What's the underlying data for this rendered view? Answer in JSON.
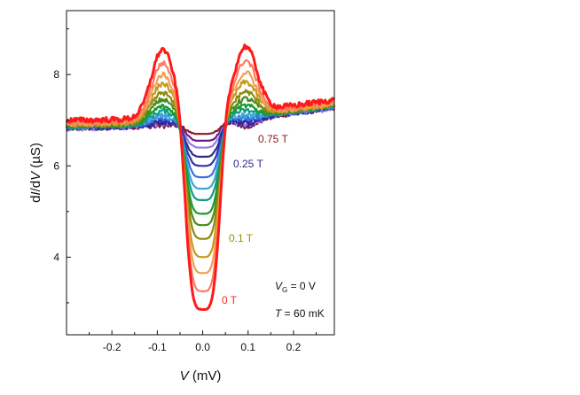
{
  "chart_data": {
    "type": "line",
    "xlabel": {
      "var": "V",
      "unit": " (mV)"
    },
    "ylabel": {
      "prefix": "d",
      "var1": "I",
      "mid": "/d",
      "var2": "V",
      "unit": " (µS)"
    },
    "xlim": [
      -0.3,
      0.29
    ],
    "ylim": [
      2.3,
      9.4
    ],
    "xticks": [
      -0.2,
      -0.1,
      0.0,
      0.1,
      0.2
    ],
    "xtick_labels": [
      "-0.2",
      "-0.1",
      "0.0",
      "0.1",
      "0.2"
    ],
    "yticks": [
      4,
      6,
      8
    ],
    "ytick_labels": [
      "4",
      "6",
      "8"
    ],
    "grid": false,
    "legend": "none",
    "annotations": {
      "field_labels": [
        {
          "text": "0.75 T",
          "color": "#8b1a1a"
        },
        {
          "text": "0.25 T",
          "color": "#2a2a8c"
        },
        {
          "text": "0.1 T",
          "color": "#a08c00"
        },
        {
          "text": "0 T",
          "color": "#ff2a1a"
        }
      ],
      "gate": {
        "var": "V",
        "sub": "G",
        "value": " = 0 V"
      },
      "temperature": {
        "var": "T",
        "value": " = 60 mK"
      }
    },
    "series": [
      {
        "color": "#ff1a1a",
        "min": 2.85,
        "peak": 8.55,
        "edge": 7.05
      },
      {
        "color": "#ff7a60",
        "min": 3.25,
        "peak": 8.25,
        "edge": 7.0
      },
      {
        "color": "#f0a050",
        "min": 3.65,
        "peak": 8.0,
        "edge": 6.98
      },
      {
        "color": "#c89820",
        "min": 4.0,
        "peak": 7.8,
        "edge": 6.96
      },
      {
        "color": "#8a8a10",
        "min": 4.4,
        "peak": 7.6,
        "edge": 6.95
      },
      {
        "color": "#4a8a20",
        "min": 4.7,
        "peak": 7.45,
        "edge": 6.94
      },
      {
        "color": "#1a9a30",
        "min": 4.95,
        "peak": 7.3,
        "edge": 6.93
      },
      {
        "color": "#109a8a",
        "min": 5.25,
        "peak": 7.2,
        "edge": 6.92
      },
      {
        "color": "#3aa8d8",
        "min": 5.5,
        "peak": 7.1,
        "edge": 6.92
      },
      {
        "color": "#3a70e0",
        "min": 5.75,
        "peak": 7.05,
        "edge": 6.92
      },
      {
        "color": "#3030b0",
        "min": 6.0,
        "peak": 6.98,
        "edge": 6.9
      },
      {
        "color": "#2a2a8c",
        "min": 6.2,
        "peak": 6.95,
        "edge": 6.9
      },
      {
        "color": "#9a7ae8",
        "min": 6.4,
        "peak": 6.92,
        "edge": 6.88
      },
      {
        "color": "#6a1a8a",
        "min": 6.55,
        "peak": 6.9,
        "edge": 6.88
      },
      {
        "color": "#8b1a1a",
        "min": 6.7,
        "peak": 6.88,
        "edge": 6.88
      }
    ]
  }
}
